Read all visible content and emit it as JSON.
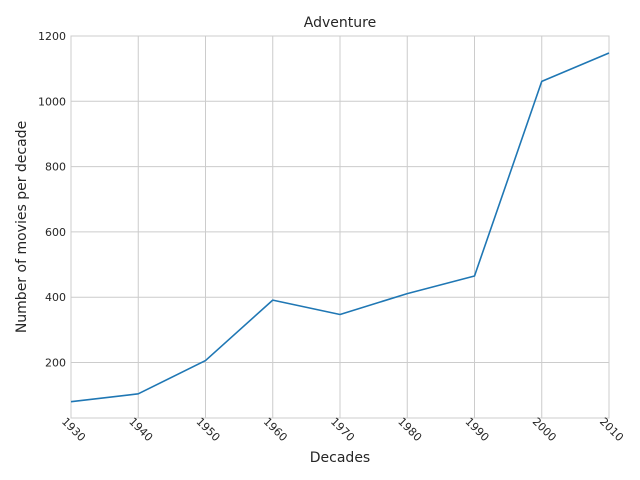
{
  "chart_data": {
    "type": "line",
    "title": "Adventure",
    "xlabel": "Decades",
    "ylabel": "Number of movies per decade",
    "x": [
      1930,
      1940,
      1950,
      1960,
      1970,
      1980,
      1990,
      2000,
      2010
    ],
    "series": [
      {
        "values": [
          80,
          104,
          206,
          391,
          347,
          411,
          465,
          1061,
          1148
        ],
        "color": "#1f77b4"
      }
    ],
    "xlim": [
      1930,
      2010
    ],
    "ylim": [
      30,
      1200
    ],
    "xticks": [
      "1930",
      "1940",
      "1950",
      "1960",
      "1970",
      "1980",
      "1990",
      "2000",
      "2010"
    ],
    "yticks": [
      "200",
      "400",
      "600",
      "800",
      "1000",
      "1200"
    ],
    "grid": true,
    "style": {
      "grid_color": "#cccccc",
      "spine_color": "#cccccc"
    }
  }
}
